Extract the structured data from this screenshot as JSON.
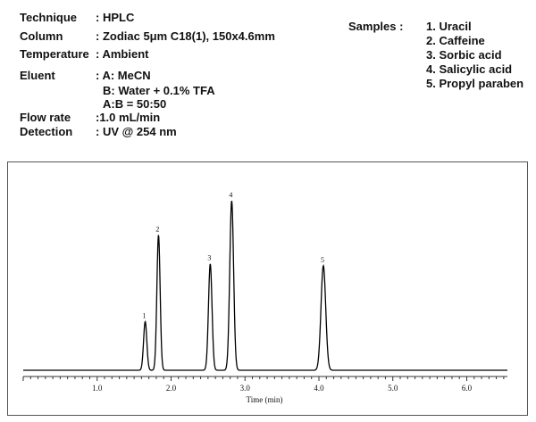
{
  "method": {
    "technique": {
      "label": "Technique",
      "value": ": HPLC"
    },
    "column": {
      "label": "Column",
      "value": ": Zodiac 5μm C18(1), 150x4.6mm"
    },
    "temperature": {
      "label": "Temperature",
      "value": ": Ambient"
    },
    "eluent": {
      "label": "Eluent",
      "line1": ": A: MeCN",
      "line2": "B: Water + 0.1% TFA",
      "line3": "A:B = 50:50"
    },
    "flow_rate": {
      "label": "Flow rate",
      "value": ":1.0 mL/min"
    },
    "detection": {
      "label": "Detection",
      "value": ": UV @ 254 nm"
    }
  },
  "samples": {
    "title": "Samples :",
    "items": [
      "1. Uracil",
      "2. Caffeine",
      "3. Sorbic acid",
      "4. Salicylic acid",
      "5. Propyl paraben"
    ]
  },
  "chart_data": {
    "type": "line",
    "xlabel": "Time (min)",
    "ylabel": "",
    "xlim": [
      0.0,
      6.55
    ],
    "xticks": [
      "1.0",
      "2.0",
      "3.0",
      "4.0",
      "5.0",
      "6.0"
    ],
    "xtick_values": [
      1.0,
      2.0,
      3.0,
      4.0,
      5.0,
      6.0
    ],
    "grid": false,
    "baseline": 0,
    "ylim": [
      0,
      100
    ],
    "peaks": [
      {
        "label": "1",
        "retention_time": 1.65,
        "height": 27,
        "width": 0.022
      },
      {
        "label": "2",
        "retention_time": 1.83,
        "height": 75,
        "width": 0.022
      },
      {
        "label": "3",
        "retention_time": 2.53,
        "height": 59,
        "width": 0.024
      },
      {
        "label": "4",
        "retention_time": 2.82,
        "height": 94,
        "width": 0.026
      },
      {
        "label": "5",
        "retention_time": 4.06,
        "height": 58,
        "width": 0.032
      }
    ]
  }
}
